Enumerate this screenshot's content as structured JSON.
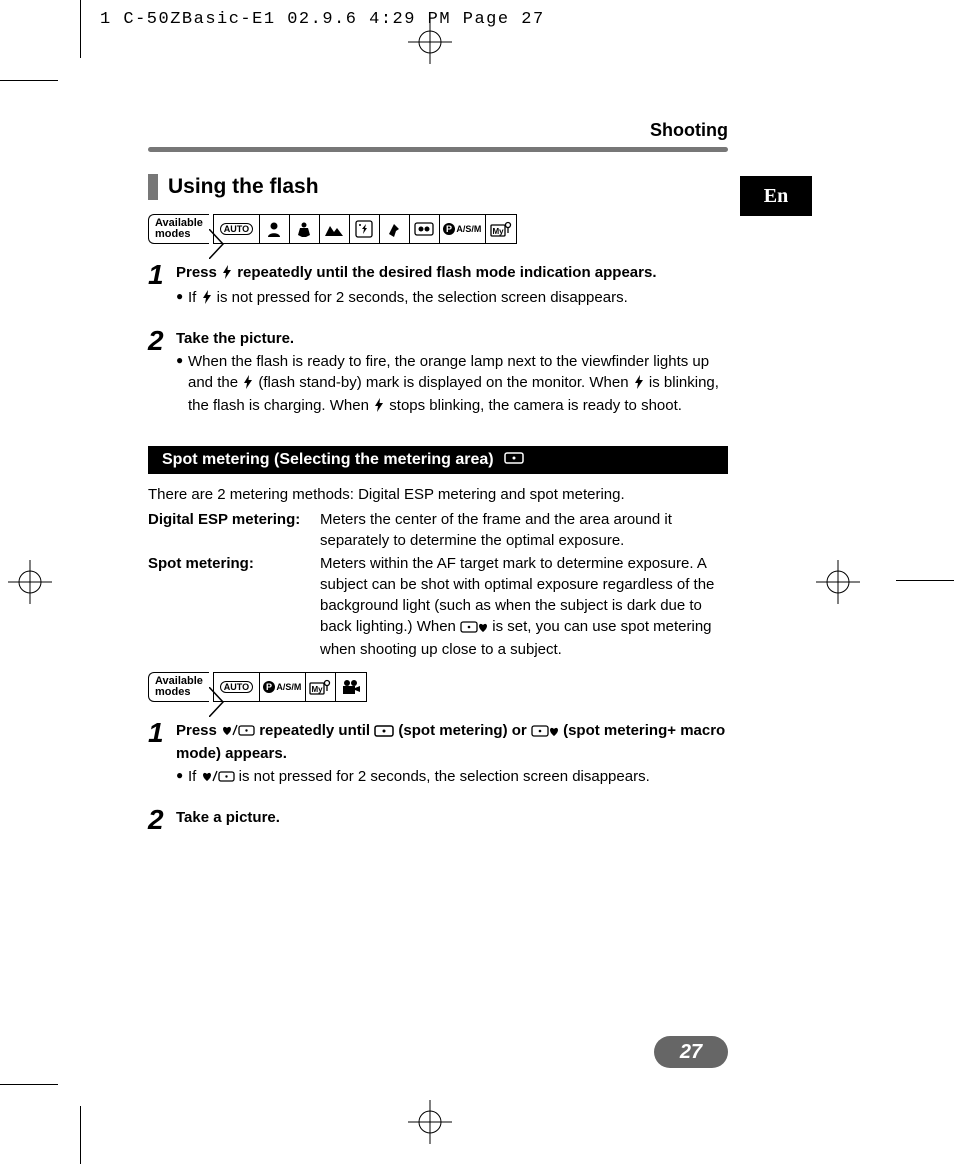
{
  "print_header": "1 C-50ZBasic-E1  02.9.6 4:29 PM  Page 27",
  "chapter": "Shooting",
  "lang_tab": "En",
  "page_number": "27",
  "section1": {
    "title": "Using the flash",
    "modes_label_l1": "Available",
    "modes_label_l2": "modes",
    "mode_auto": "AUTO",
    "mode_pasm": "A/S/M",
    "mode_my": "My",
    "step1_lead_a": "Press ",
    "step1_lead_b": " repeatedly until the desired flash mode indication appears.",
    "step1_bullet_a": "If ",
    "step1_bullet_b": " is not pressed for 2 seconds, the selection screen disappears.",
    "step2_lead": "Take the picture.",
    "step2_bullet_a": "When the flash is ready to fire, the orange lamp next to the viewfinder lights up and the ",
    "step2_bullet_b": " (flash stand-by) mark is displayed on the monitor. When ",
    "step2_bullet_c": " is blinking, the flash is charging. When ",
    "step2_bullet_d": " stops blinking, the camera is ready to shoot."
  },
  "section2": {
    "title": "Spot metering (Selecting the metering area)",
    "intro": "There are 2 metering methods:   Digital ESP metering and spot metering.",
    "term1": "Digital ESP metering:",
    "def1": "Meters the center of the frame and the area around it separately to determine the optimal exposure.",
    "term2": "Spot metering:",
    "def2_a": "Meters within the AF target mark to determine exposure. A subject can be shot with optimal exposure regardless of the background light (such as when the subject is dark due to back lighting.) When ",
    "def2_b": " is set, you can use spot metering when shooting up close to a subject.",
    "modes_label_l1": "Available",
    "modes_label_l2": "modes",
    "mode_auto": "AUTO",
    "mode_pasm": "A/S/M",
    "mode_my": "My",
    "step1_lead_a": "Press ",
    "step1_lead_b": " repeatedly until ",
    "step1_lead_c": " (spot metering) or ",
    "step1_lead_d": " (spot metering+ macro mode) appears.",
    "step1_bullet_a": "If ",
    "step1_bullet_b": " is not pressed for 2 seconds, the selection screen disappears.",
    "step2_lead": "Take a picture."
  },
  "icons": {
    "flash_svg": "<svg width='12' height='14' viewBox='0 0 10 14'><path d='M6 0 L1 8 L4 8 L3 14 L9 5 L5.5 5 Z' fill='#000'/></svg>",
    "spot_rect_svg": "<svg width='20' height='12' viewBox='0 0 20 12'><rect x='1' y='1' width='18' height='10' rx='2' fill='none' stroke='#000' stroke-width='1.5'/><circle cx='10' cy='6' r='1.5' fill='#000'/></svg>",
    "spot_rect_white_svg": "<svg width='20' height='12' viewBox='0 0 20 12'><rect x='1' y='1' width='18' height='10' rx='2' fill='none' stroke='#fff' stroke-width='1.5'/><circle cx='10' cy='6' r='1.5' fill='#fff'/></svg>",
    "macro_svg": "<svg width='12' height='12' viewBox='0 0 12 12'><path d='M6 11 C6 11 2 8 2 5 C2 3 4 2 6 4 C8 2 10 3 10 5 C10 8 6 11 6 11 Z' fill='#000'/></svg>",
    "spot_macro_svg": "<svg width='28' height='12' viewBox='0 0 28 12'><rect x='1' y='1' width='16' height='10' rx='2' fill='none' stroke='#000' stroke-width='1.3'/><circle cx='9' cy='6' r='1.3' fill='#000'/><path d='M23 11 C23 11 19 8 19 5 C19 3 21 2 23 4 C25 2 27 3 27 5 C27 8 23 11 23 11 Z' fill='#000'/></svg>",
    "macro_slash_spot_svg": "<svg width='34' height='14' viewBox='0 0 34 14'><path d='M6 12 C6 12 2 9 2 6 C2 4 4 3 6 5 C8 3 10 4 10 6 C10 9 6 12 6 12 Z' fill='#000'/><line x1='12' y1='12' x2='16' y2='2' stroke='#000' stroke-width='1.3'/><rect x='18' y='3' width='15' height='9' rx='2' fill='none' stroke='#000' stroke-width='1.3'/><circle cx='25.5' cy='7.5' r='1.2' fill='#000'/></svg>"
  }
}
